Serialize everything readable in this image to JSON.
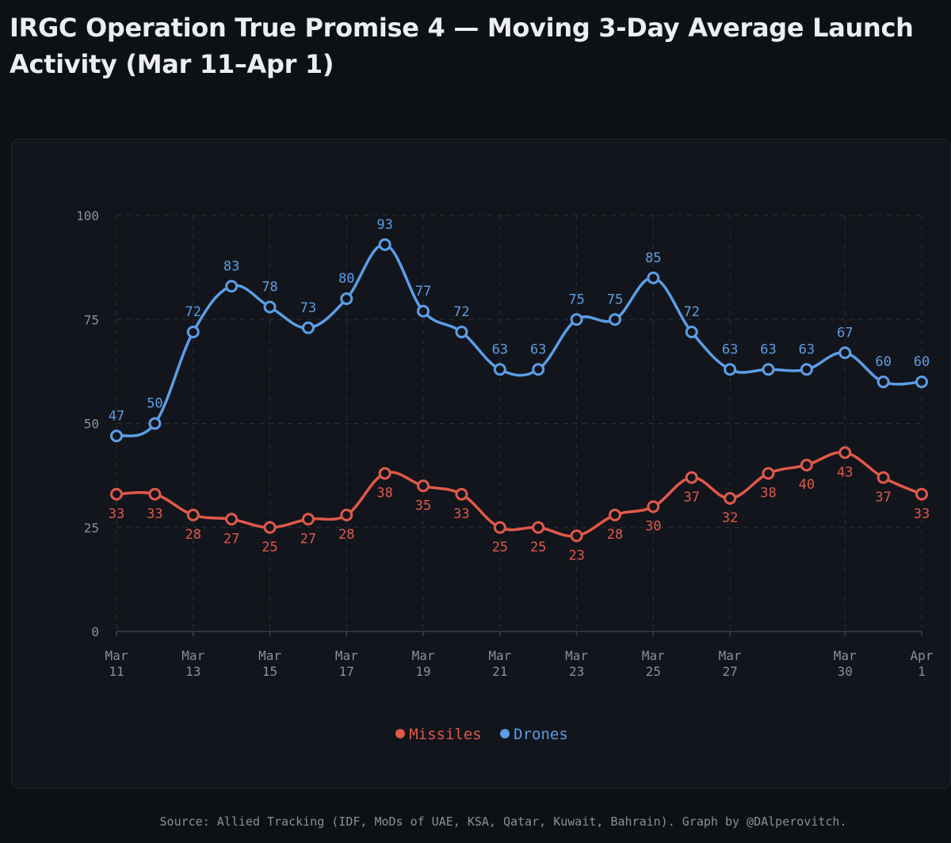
{
  "title": "IRGC Operation True Promise 4 — Moving 3-Day Average Launch Activity (Mar 11–Apr 1)",
  "source": "Source: Allied Tracking (IDF, MoDs of UAE, KSA, Qatar, Kuwait, Bahrain). Graph by @DAlperovitch.",
  "colors": {
    "missiles": "#e0594a",
    "drones": "#5b9ee6",
    "background": "#0d1015",
    "card": "#12151b",
    "grid": "#2a2f37",
    "tick": "#8b9097"
  },
  "chart_data": {
    "type": "line",
    "title": "IRGC Operation True Promise 4 — Moving 3-Day Average Launch Activity (Mar 11–Apr 1)",
    "x": [
      "2025-03-11",
      "2025-03-12",
      "2025-03-13",
      "2025-03-14",
      "2025-03-15",
      "2025-03-16",
      "2025-03-17",
      "2025-03-18",
      "2025-03-19",
      "2025-03-20",
      "2025-03-21",
      "2025-03-22",
      "2025-03-23",
      "2025-03-24",
      "2025-03-25",
      "2025-03-26",
      "2025-03-27",
      "2025-03-28",
      "2025-03-29",
      "2025-03-30",
      "2025-03-31",
      "2025-04-01"
    ],
    "x_ticks": [
      {
        "date": "2025-03-11",
        "month": "Mar",
        "day": "11"
      },
      {
        "date": "2025-03-13",
        "month": "Mar",
        "day": "13"
      },
      {
        "date": "2025-03-15",
        "month": "Mar",
        "day": "15"
      },
      {
        "date": "2025-03-17",
        "month": "Mar",
        "day": "17"
      },
      {
        "date": "2025-03-19",
        "month": "Mar",
        "day": "19"
      },
      {
        "date": "2025-03-21",
        "month": "Mar",
        "day": "21"
      },
      {
        "date": "2025-03-23",
        "month": "Mar",
        "day": "23"
      },
      {
        "date": "2025-03-25",
        "month": "Mar",
        "day": "25"
      },
      {
        "date": "2025-03-27",
        "month": "Mar",
        "day": "27"
      },
      {
        "date": "2025-03-30",
        "month": "Mar",
        "day": "30"
      },
      {
        "date": "2025-04-01",
        "month": "Apr",
        "day": "1"
      }
    ],
    "series": [
      {
        "name": "Missiles",
        "color": "#e0594a",
        "values": [
          33,
          33,
          28,
          27,
          25,
          27,
          28,
          38,
          35,
          33,
          25,
          25,
          23,
          28,
          30,
          37,
          32,
          38,
          40,
          43,
          37,
          33
        ]
      },
      {
        "name": "Drones",
        "color": "#5b9ee6",
        "values": [
          47,
          50,
          72,
          83,
          78,
          73,
          80,
          93,
          77,
          72,
          63,
          63,
          75,
          75,
          85,
          72,
          63,
          63,
          63,
          67,
          60,
          60
        ]
      }
    ],
    "yticks": [
      "0",
      "25",
      "50",
      "75",
      "100"
    ],
    "ylim": [
      0,
      100
    ],
    "grid": true,
    "legend": "bottom-center",
    "data_labels": true
  }
}
